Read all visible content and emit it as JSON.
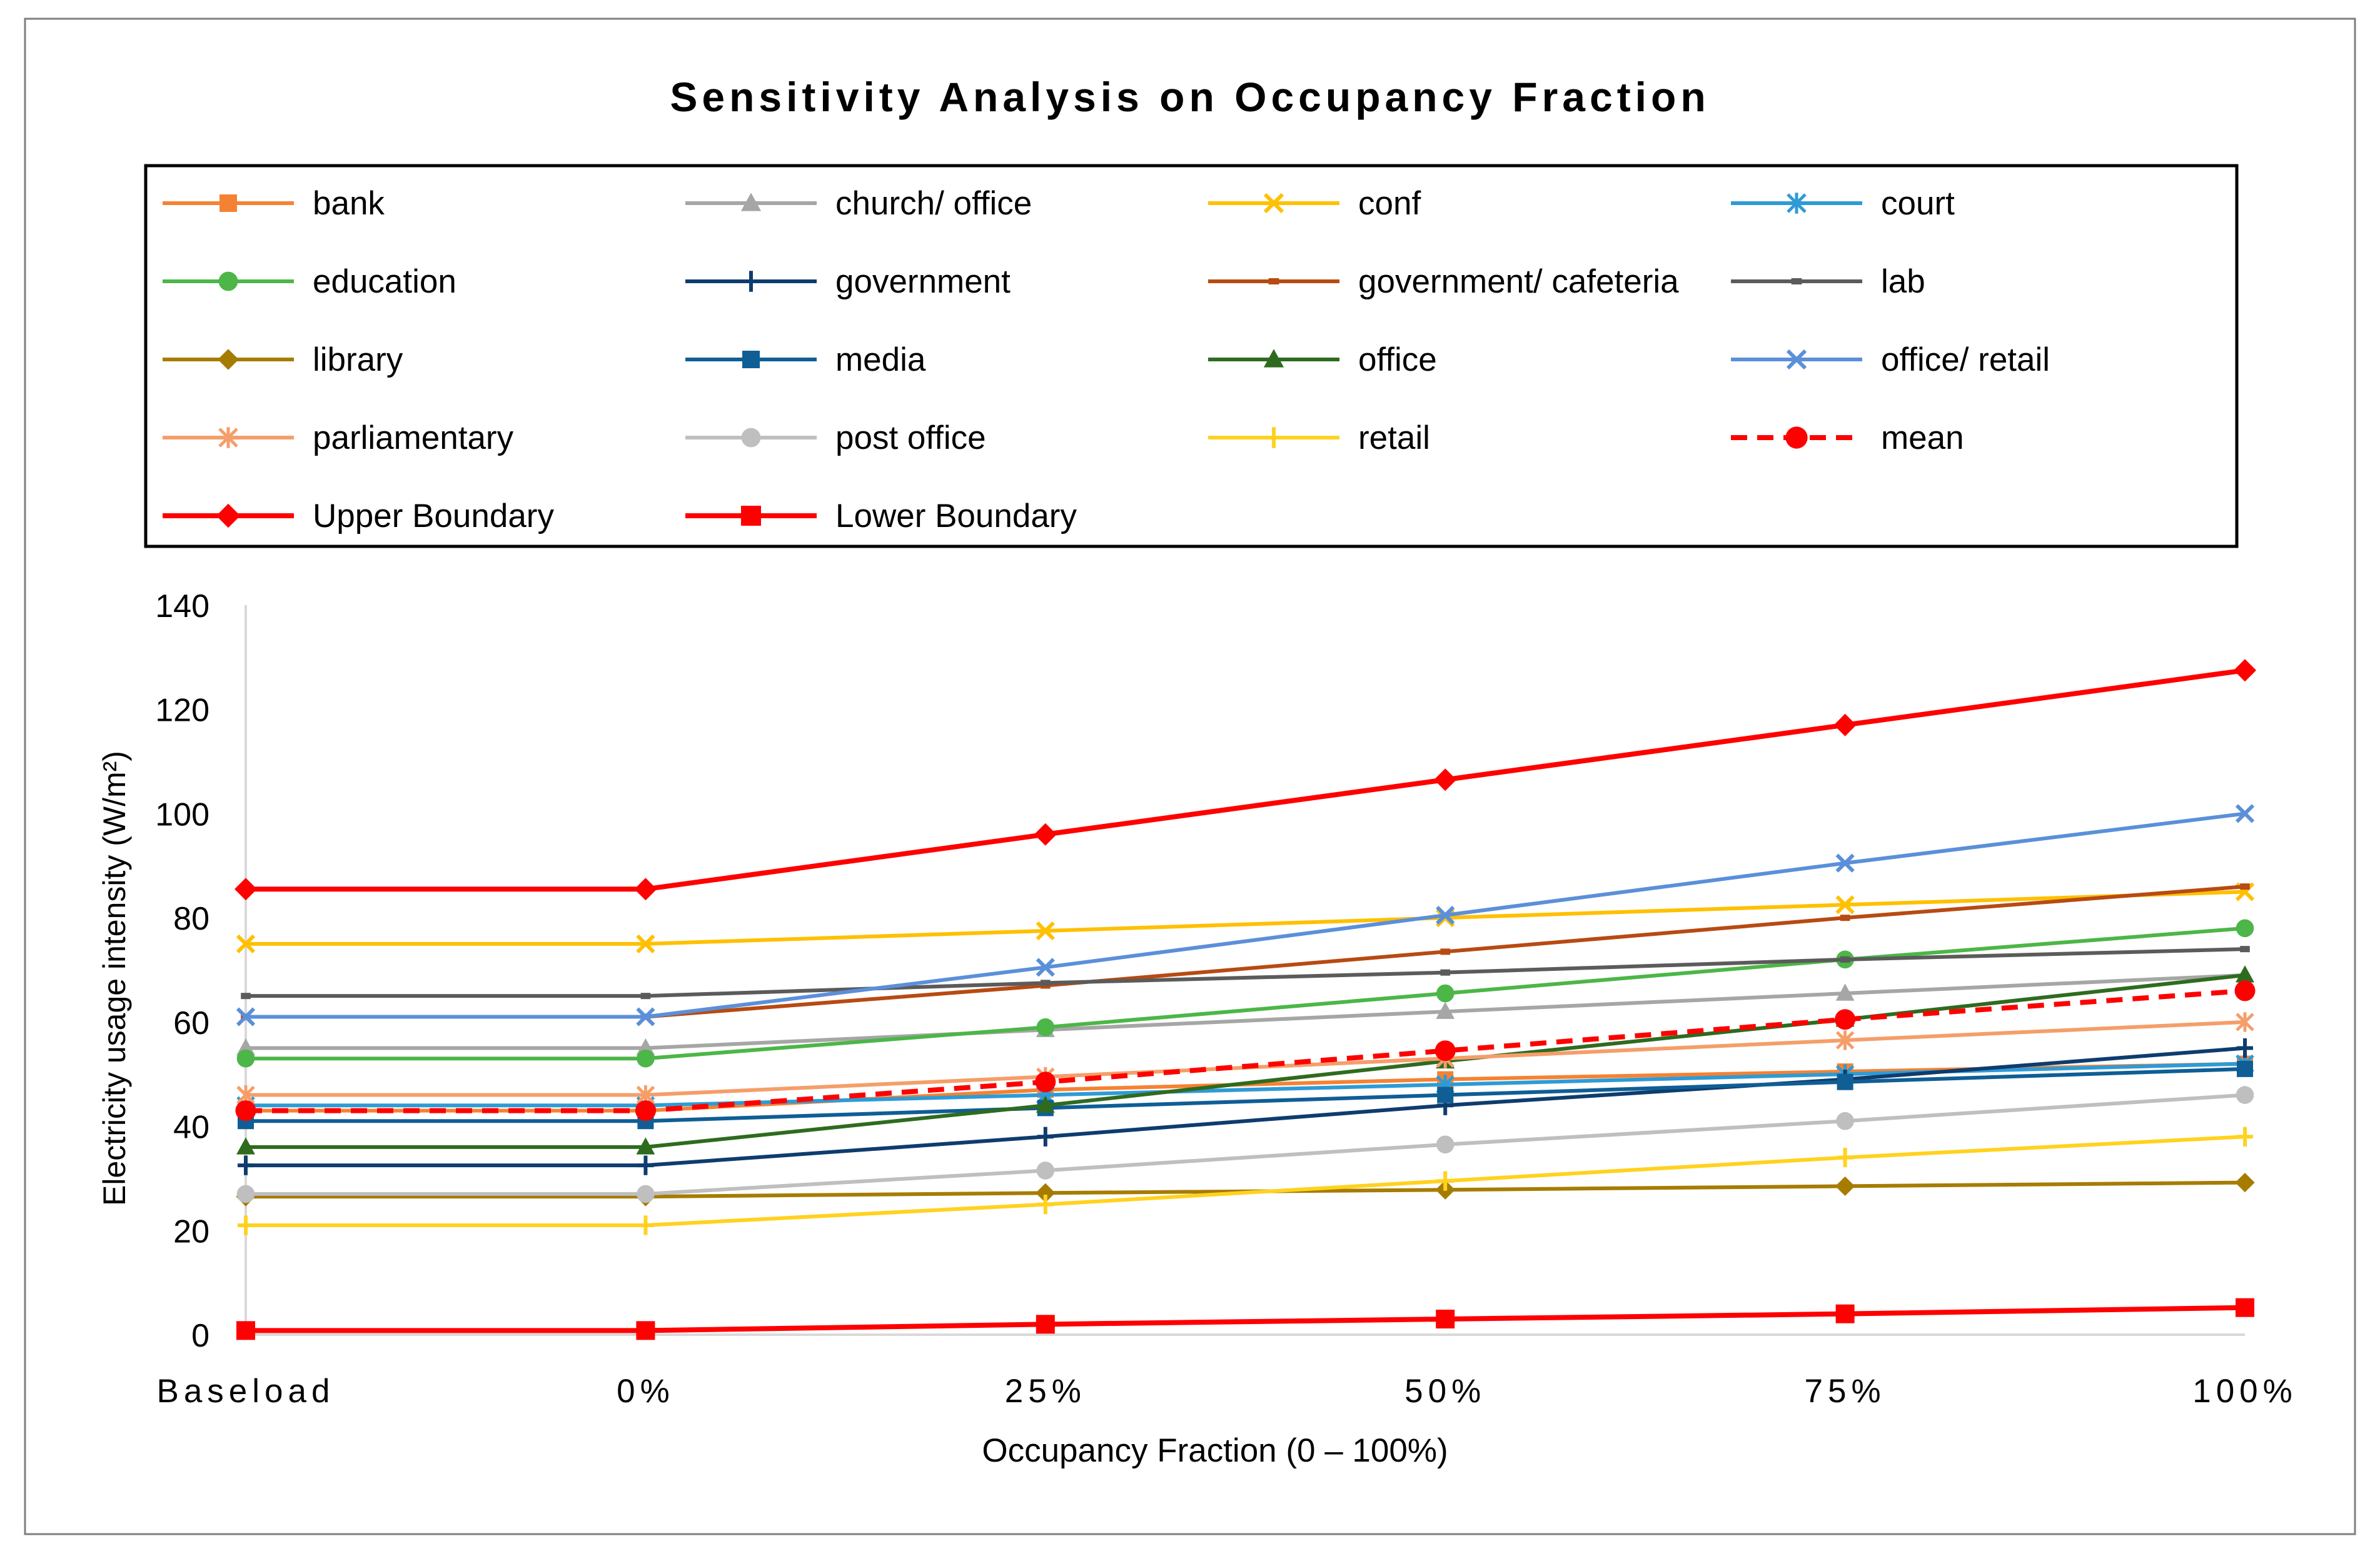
{
  "chart_data": {
    "type": "line",
    "title": "Sensitivity Analysis on Occupancy Fraction",
    "xlabel": "Occupancy Fraction (0 – 100%)",
    "ylabel": "Electricity usage intensity (W/m²)",
    "ylim": [
      0,
      140
    ],
    "yticks": [
      0,
      20,
      40,
      60,
      80,
      100,
      120,
      140
    ],
    "grid": false,
    "legend": "top",
    "categories": [
      "Baseload",
      "0%",
      "25%",
      "50%",
      "75%",
      "100%"
    ],
    "series": [
      {
        "name": "bank",
        "color": "#F58233",
        "marker": "square",
        "dash": false,
        "values": [
          43,
          43,
          47,
          49,
          50.5,
          52
        ]
      },
      {
        "name": "church/ office",
        "color": "#A6A6A6",
        "marker": "triangle",
        "dash": false,
        "values": [
          55,
          55,
          58.5,
          62,
          65.5,
          69
        ]
      },
      {
        "name": "conf",
        "color": "#FFC000",
        "marker": "x",
        "dash": false,
        "values": [
          75,
          75,
          77.5,
          80,
          82.5,
          85
        ]
      },
      {
        "name": "court",
        "color": "#2E9BD6",
        "marker": "star",
        "dash": false,
        "values": [
          44,
          44,
          46,
          48,
          50,
          52
        ]
      },
      {
        "name": "education",
        "color": "#4CB648",
        "marker": "circle",
        "dash": false,
        "values": [
          53,
          53,
          59,
          65.5,
          72,
          78
        ]
      },
      {
        "name": "government",
        "color": "#0E3C6E",
        "marker": "plus",
        "dash": false,
        "values": [
          32.5,
          32.5,
          38,
          44,
          49,
          55
        ]
      },
      {
        "name": "government/ cafeteria",
        "color": "#B84A12",
        "marker": "dash",
        "dash": false,
        "values": [
          61,
          61,
          67,
          73.5,
          80,
          86
        ]
      },
      {
        "name": "lab",
        "color": "#5B5B5B",
        "marker": "dash",
        "dash": false,
        "values": [
          65,
          65,
          67.5,
          69.5,
          72,
          74
        ]
      },
      {
        "name": "library",
        "color": "#A67C00",
        "marker": "diamond",
        "dash": false,
        "values": [
          26.5,
          26.5,
          27.2,
          27.8,
          28.5,
          29.2
        ]
      },
      {
        "name": "media",
        "color": "#0F5E96",
        "marker": "square",
        "dash": false,
        "values": [
          41,
          41,
          43.5,
          46,
          48.5,
          51
        ]
      },
      {
        "name": "office",
        "color": "#2E6B1F",
        "marker": "triangle",
        "dash": false,
        "values": [
          36,
          36,
          44,
          52.5,
          60.5,
          69
        ]
      },
      {
        "name": "office/ retail",
        "color": "#5B8FD9",
        "marker": "x",
        "dash": false,
        "values": [
          61,
          61,
          70.5,
          80.5,
          90.5,
          100
        ]
      },
      {
        "name": "parliamentary",
        "color": "#F59E6A",
        "marker": "star",
        "dash": false,
        "values": [
          46,
          46,
          49.5,
          53,
          56.5,
          60
        ]
      },
      {
        "name": "post office",
        "color": "#BFBFBF",
        "marker": "circle",
        "dash": false,
        "values": [
          27,
          27,
          31.5,
          36.5,
          41,
          46
        ]
      },
      {
        "name": "retail",
        "color": "#FFD21F",
        "marker": "plus",
        "dash": false,
        "values": [
          21,
          21,
          25,
          29.5,
          34,
          38
        ]
      },
      {
        "name": "mean",
        "color": "#FF0000",
        "marker": "circle",
        "dash": true,
        "values": [
          43,
          43,
          48.5,
          54.5,
          60.5,
          66
        ]
      },
      {
        "name": "Upper Boundary",
        "color": "#FF0000",
        "marker": "diamond",
        "dash": false,
        "values": [
          85.5,
          85.5,
          96,
          106.5,
          117,
          127.5
        ]
      },
      {
        "name": "Lower Boundary",
        "color": "#FF0000",
        "marker": "square",
        "dash": false,
        "values": [
          0.8,
          0.8,
          2,
          3,
          4,
          5.2
        ]
      }
    ]
  }
}
